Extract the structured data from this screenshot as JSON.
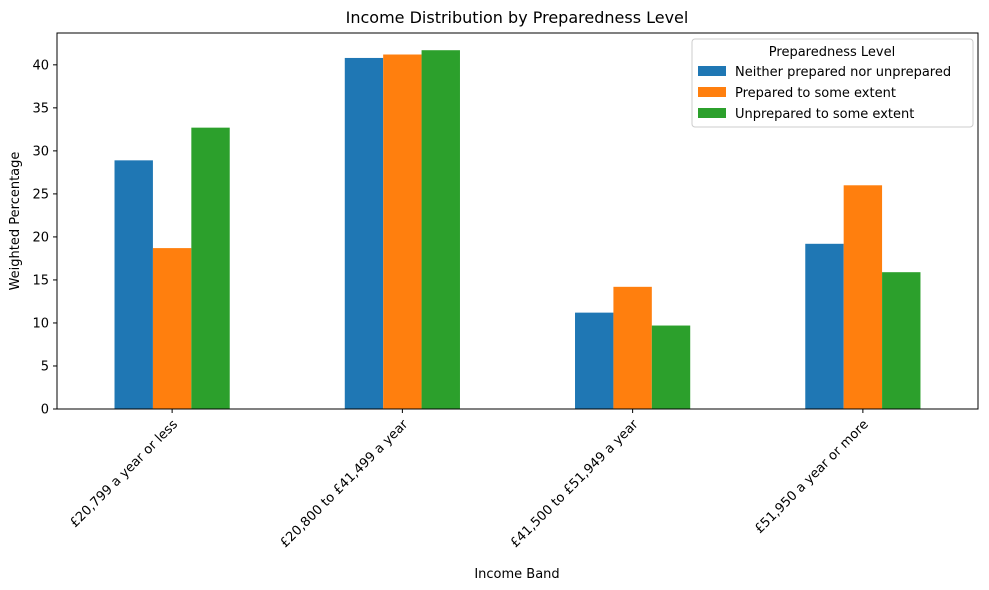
{
  "chart_data": {
    "type": "bar",
    "title": "Income Distribution by Preparedness Level",
    "xlabel": "Income Band",
    "ylabel": "Weighted Percentage",
    "ylim": [
      0,
      43.7
    ],
    "yticks": [
      0,
      5,
      10,
      15,
      20,
      25,
      30,
      35,
      40
    ],
    "categories": [
      "£20,799 a year or less",
      "£20,800 to £41,499 a year",
      "£41,500 to £51,949 a year",
      "£51,950 a year or more"
    ],
    "series": [
      {
        "name": "Neither prepared nor unprepared",
        "color": "#1f77b4",
        "values": [
          28.9,
          40.8,
          11.2,
          19.2
        ]
      },
      {
        "name": "Prepared to some extent",
        "color": "#ff7f0e",
        "values": [
          18.7,
          41.2,
          14.2,
          26.0
        ]
      },
      {
        "name": "Unprepared to some extent",
        "color": "#2ca02c",
        "values": [
          32.7,
          41.7,
          9.7,
          15.9
        ]
      }
    ],
    "legend": {
      "title": "Preparedness Level",
      "placement": "top-right"
    },
    "grid": false
  }
}
